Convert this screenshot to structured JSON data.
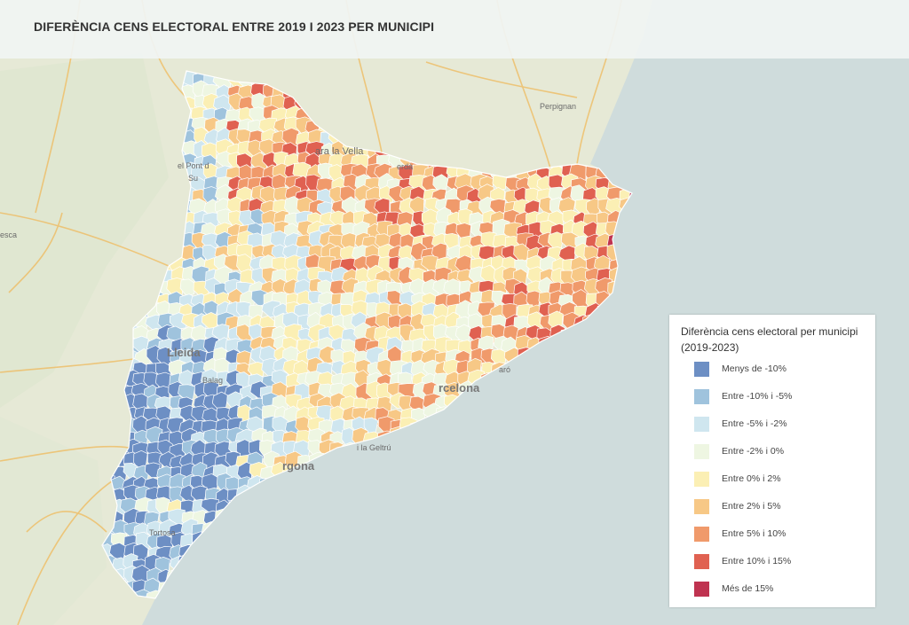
{
  "title": "DIFERÈNCIA CENS ELECTORAL ENTRE 2019 I 2023 PER MUNICIPI",
  "places": {
    "perpignan": "Perpignan",
    "sarra": "ara la Vella",
    "cerda": "erdà",
    "elpont": "el Pont d",
    "suert": "Su",
    "huesca": "esca",
    "lleida": "Lleida",
    "balaguer": "Balag",
    "barcelona": "rcelona",
    "vilanova": "i la Geltrú",
    "tarragona": "rgona",
    "mataro": "aró",
    "tortosa": "Tortosa"
  },
  "legend": {
    "title": "Diferència cens electoral per municipi (2019-2023)",
    "items": [
      {
        "label": "Menys de -10%",
        "color": "#6d8fc4"
      },
      {
        "label": "Entre -10% i -5%",
        "color": "#9fc3dd"
      },
      {
        "label": "Entre -5% i -2%",
        "color": "#cfe6ef"
      },
      {
        "label": "Entre -2% i 0%",
        "color": "#eef6e2"
      },
      {
        "label": "Entre 0% i 2%",
        "color": "#fbefb4"
      },
      {
        "label": "Entre 2% i 5%",
        "color": "#f7c886"
      },
      {
        "label": "Entre 5% i 10%",
        "color": "#f09a6b"
      },
      {
        "label": "Entre 10% i 15%",
        "color": "#e06151"
      },
      {
        "label": "Més de 15%",
        "color": "#bf3350"
      }
    ]
  },
  "colors": {
    "sea": "#cfdcdc",
    "land": "#e6e9d6",
    "road": "#eebf6a",
    "border": "#ffffff"
  }
}
